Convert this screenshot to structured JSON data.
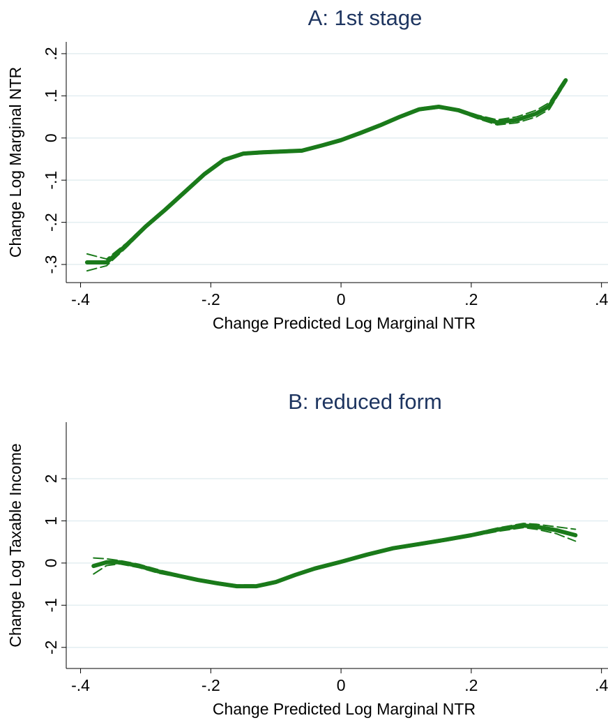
{
  "chart_data": [
    {
      "type": "line",
      "title": "A: 1st stage",
      "x_label": "Change Predicted Log Marginal NTR",
      "y_label": "Change Log Marginal NTR",
      "x": [
        -0.39,
        -0.36,
        -0.33,
        -0.3,
        -0.27,
        -0.24,
        -0.21,
        -0.18,
        -0.15,
        -0.12,
        -0.06,
        -0.03,
        0,
        0.03,
        0.06,
        0.09,
        0.12,
        0.15,
        0.18,
        0.21,
        0.24,
        0.27,
        0.3,
        0.32,
        0.345
      ],
      "series": [
        {
          "color": "#1a7a1a",
          "style": "solid",
          "values": [
            -0.295,
            -0.295,
            -0.255,
            -0.21,
            -0.17,
            -0.128,
            -0.086,
            -0.052,
            -0.037,
            -0.034,
            -0.03,
            -0.018,
            -0.005,
            0.012,
            0.03,
            0.05,
            0.068,
            0.074,
            0.066,
            0.05,
            0.037,
            0.043,
            0.058,
            0.076,
            0.137
          ]
        },
        {
          "color": "#1a7a1a",
          "style": "dashed",
          "values": [
            -0.275,
            -0.287,
            -0.25,
            -0.206,
            -0.166,
            -0.124,
            -0.083,
            -0.049,
            -0.034,
            -0.031,
            -0.027,
            -0.015,
            -0.002,
            0.015,
            0.033,
            0.053,
            0.071,
            0.077,
            0.069,
            0.054,
            0.043,
            0.05,
            0.066,
            0.084,
            0.143
          ]
        },
        {
          "color": "#1a7a1a",
          "style": "dashed",
          "values": [
            -0.315,
            -0.303,
            -0.26,
            -0.214,
            -0.174,
            -0.132,
            -0.089,
            -0.055,
            -0.04,
            -0.037,
            -0.033,
            -0.021,
            -0.008,
            0.009,
            0.027,
            0.047,
            0.065,
            0.071,
            0.063,
            0.046,
            0.031,
            0.036,
            0.05,
            0.068,
            0.131
          ]
        }
      ],
      "xlim": [
        -0.422,
        0.41
      ],
      "xticks": [
        {
          "value": -0.4,
          "label": "-.4"
        },
        {
          "value": -0.2,
          "label": "-.2"
        },
        0,
        {
          "value": 0.2,
          "label": ".2"
        },
        {
          "value": 0.4,
          "label": ".4"
        }
      ],
      "ylim": [
        -0.343,
        0.228
      ],
      "yticks": [
        {
          "value": -0.3,
          "label": "-.3"
        },
        {
          "value": -0.2,
          "label": "-.2"
        },
        {
          "value": -0.1,
          "label": "-.1"
        },
        0,
        {
          "value": 0.1,
          "label": ".1"
        },
        {
          "value": 0.2,
          "label": ".2"
        }
      ],
      "grid": true
    },
    {
      "type": "line",
      "title": "B: reduced form",
      "x_label": "Change Predicted Log Marginal NTR",
      "y_label": "Change Log Taxable Income",
      "x": [
        -0.38,
        -0.36,
        -0.34,
        -0.31,
        -0.28,
        -0.25,
        -0.22,
        -0.19,
        -0.16,
        -0.13,
        -0.1,
        -0.07,
        -0.04,
        0,
        0.04,
        0.08,
        0.12,
        0.16,
        0.2,
        0.24,
        0.28,
        0.3,
        0.33,
        0.36
      ],
      "series": [
        {
          "color": "#1a7a1a",
          "style": "solid",
          "values": [
            -0.07,
            0.02,
            0.02,
            -0.07,
            -0.2,
            -0.3,
            -0.4,
            -0.48,
            -0.55,
            -0.55,
            -0.45,
            -0.28,
            -0.13,
            0.03,
            0.2,
            0.35,
            0.45,
            0.55,
            0.66,
            0.79,
            0.89,
            0.86,
            0.78,
            0.66
          ]
        },
        {
          "color": "#1a7a1a",
          "style": "dashed",
          "values": [
            0.12,
            0.1,
            0.06,
            -0.03,
            -0.16,
            -0.27,
            -0.37,
            -0.45,
            -0.52,
            -0.52,
            -0.42,
            -0.25,
            -0.1,
            0.06,
            0.23,
            0.38,
            0.48,
            0.58,
            0.69,
            0.83,
            0.94,
            0.92,
            0.86,
            0.8
          ]
        },
        {
          "color": "#1a7a1a",
          "style": "dashed",
          "values": [
            -0.26,
            -0.06,
            -0.02,
            -0.11,
            -0.24,
            -0.33,
            -0.43,
            -0.51,
            -0.58,
            -0.58,
            -0.48,
            -0.31,
            -0.16,
            0,
            0.17,
            0.32,
            0.42,
            0.52,
            0.63,
            0.75,
            0.84,
            0.8,
            0.7,
            0.52
          ]
        }
      ],
      "xlim": [
        -0.422,
        0.41
      ],
      "xticks": [
        {
          "value": -0.4,
          "label": "-.4"
        },
        {
          "value": -0.2,
          "label": "-.2"
        },
        0,
        {
          "value": 0.2,
          "label": ".2"
        },
        {
          "value": 0.4,
          "label": ".4"
        }
      ],
      "ylim": [
        -2.5,
        3.34
      ],
      "yticks": [
        -2,
        -1,
        0,
        1,
        2
      ],
      "grid": true
    }
  ]
}
